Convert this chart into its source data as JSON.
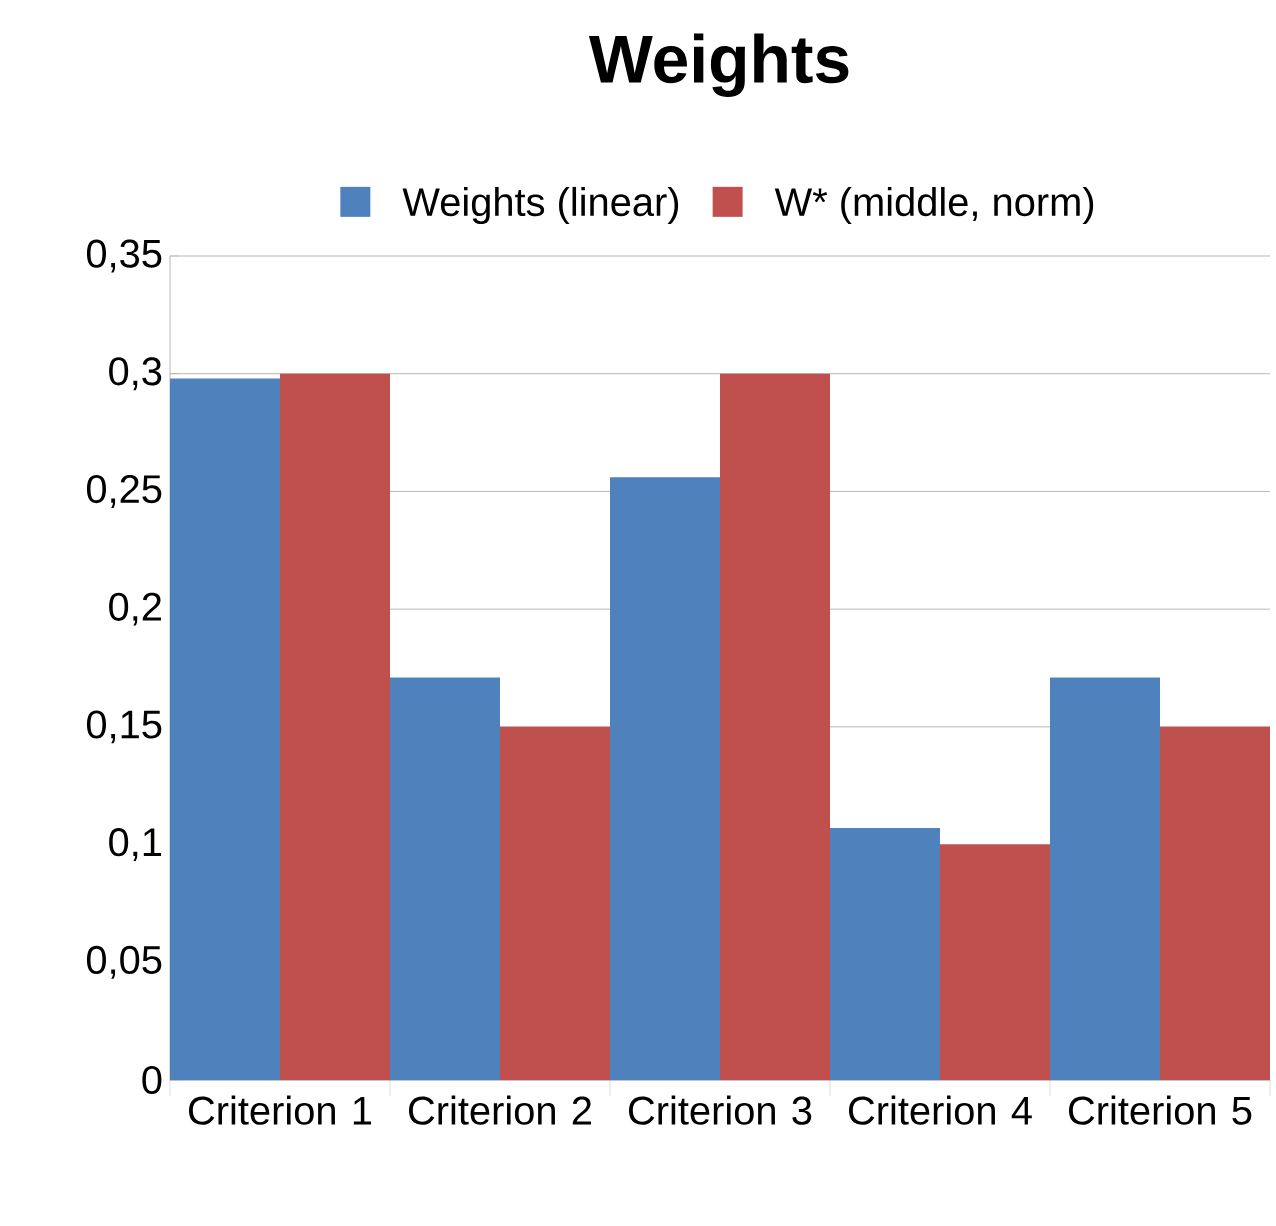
{
  "chart_data": {
    "type": "bar",
    "title": "Weights",
    "categories": [
      "Criterion 1",
      "Criterion 2",
      "Criterion 3",
      "Criterion 4",
      "Criterion 5"
    ],
    "series": [
      {
        "name": "Weights (linear)",
        "color": "#4f81bd",
        "values": [
          0.298,
          0.171,
          0.256,
          0.107,
          0.171
        ]
      },
      {
        "name": "W* (middle, norm)",
        "color": "#c0504d",
        "values": [
          0.3,
          0.15,
          0.3,
          0.1,
          0.15
        ]
      }
    ],
    "ylim": [
      0,
      0.35
    ],
    "yticks": [
      {
        "value": 0,
        "label": "0"
      },
      {
        "value": 0.05,
        "label": "0,05"
      },
      {
        "value": 0.1,
        "label": "0,1"
      },
      {
        "value": 0.15,
        "label": "0,15"
      },
      {
        "value": 0.2,
        "label": "0,2"
      },
      {
        "value": 0.25,
        "label": "0,25"
      },
      {
        "value": 0.3,
        "label": "0,3"
      },
      {
        "value": 0.35,
        "label": "0,35"
      }
    ],
    "grid": "y",
    "legend": "top"
  }
}
